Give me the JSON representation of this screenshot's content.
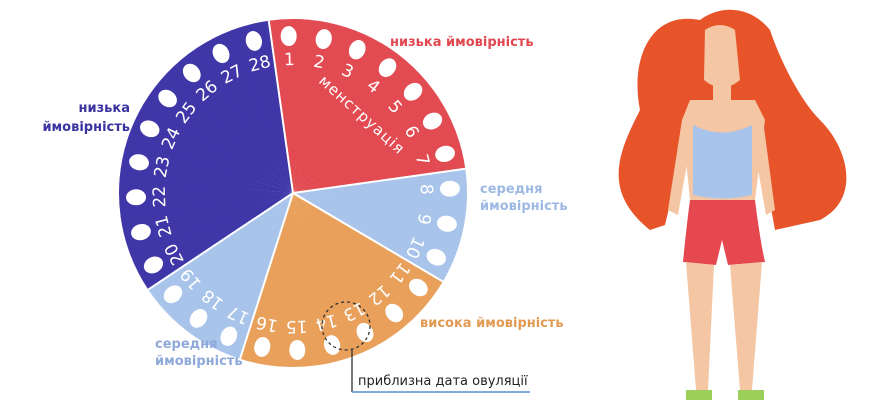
{
  "labels": {
    "top_right": "низька ймовірність",
    "left": {
      "line1": "низька",
      "line2": "ймовірність"
    },
    "right": {
      "line1": "середня",
      "line2": "ймовірність"
    },
    "bottom_right": "висока ймовірність",
    "bottom_left": {
      "line1": "середня",
      "line2": "ймовірність"
    },
    "menstruation": "менструація",
    "ovulation": "приблизна дата овуляції"
  },
  "days": [
    1,
    2,
    3,
    4,
    5,
    6,
    7,
    8,
    9,
    10,
    11,
    12,
    13,
    14,
    15,
    16,
    17,
    18,
    19,
    20,
    21,
    22,
    23,
    24,
    25,
    26,
    27,
    28
  ]
}
